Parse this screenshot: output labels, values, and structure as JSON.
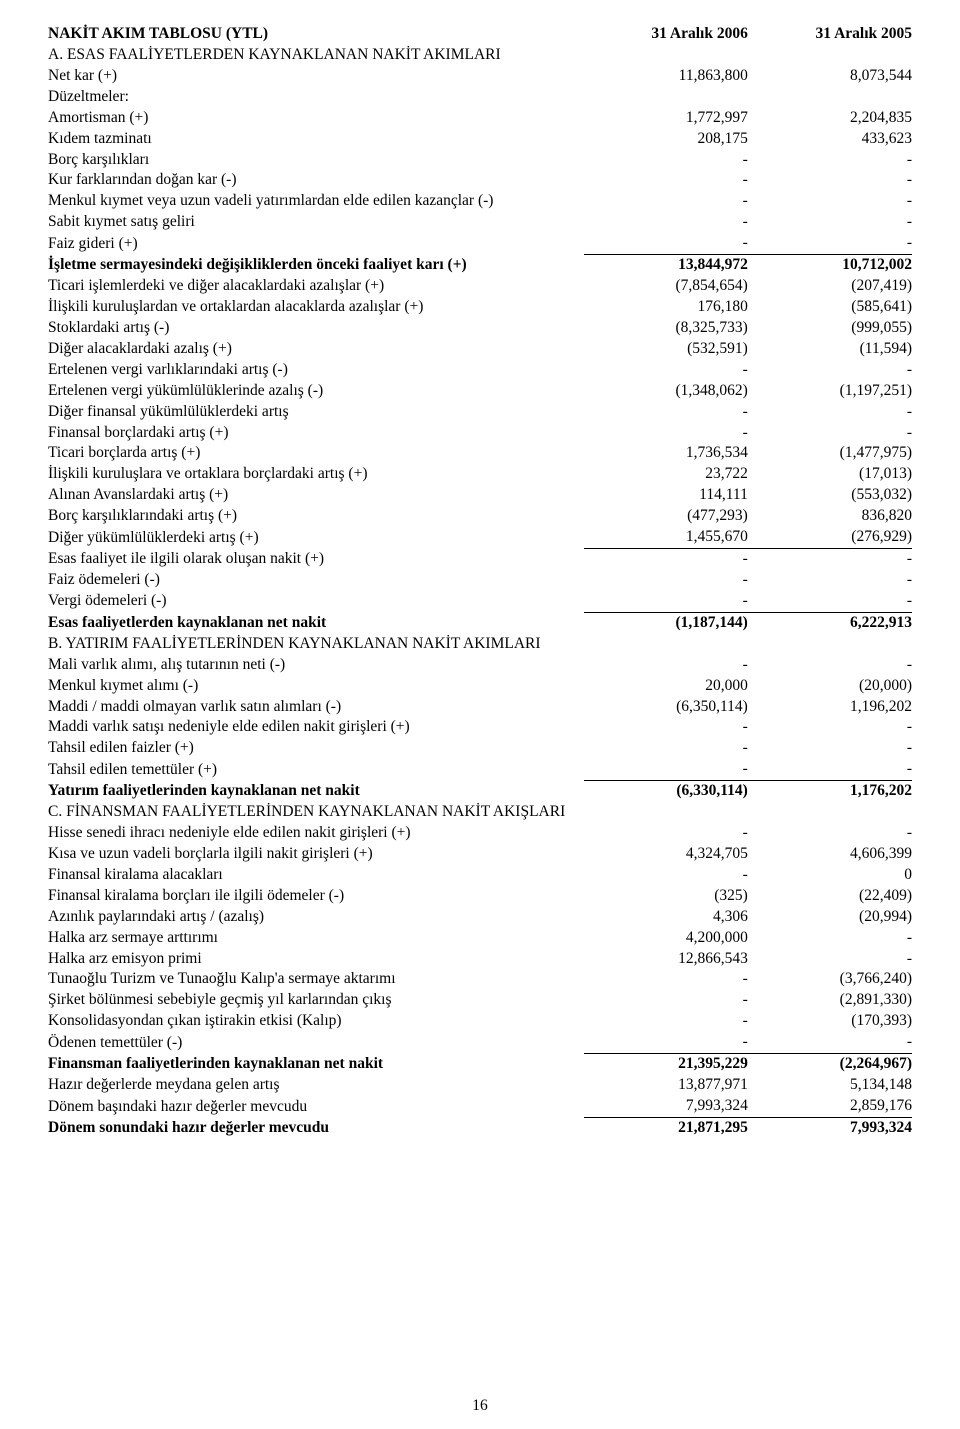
{
  "header": {
    "title": "NAKİT AKIM TABLOSU (YTL)",
    "col1": "31 Aralık 2006",
    "col2": "31 Aralık 2005"
  },
  "rows": [
    {
      "label": "A. ESAS FAALİYETLERDEN KAYNAKLANAN NAKİT AKIMLARI",
      "v1": "",
      "v2": "",
      "section": true
    },
    {
      "label": "Net kar (+)",
      "v1": "11,863,800",
      "v2": "8,073,544"
    },
    {
      "label": "Düzeltmeler:",
      "v1": "",
      "v2": ""
    },
    {
      "label": "Amortisman (+)",
      "v1": "1,772,997",
      "v2": "2,204,835"
    },
    {
      "label": "Kıdem tazminatı",
      "v1": "208,175",
      "v2": "433,623"
    },
    {
      "label": "Borç karşılıkları",
      "v1": "-",
      "v2": "-"
    },
    {
      "label": "Kur farklarından doğan kar (-)",
      "v1": "-",
      "v2": "-"
    },
    {
      "label": "Menkul kıymet veya uzun vadeli yatırımlardan elde edilen kazançlar (-)",
      "v1": "-",
      "v2": "-"
    },
    {
      "label": "Sabit kıymet satış geliri",
      "v1": "-",
      "v2": "-"
    },
    {
      "label": "Faiz gideri (+)",
      "v1": "-",
      "v2": "-"
    },
    {
      "label": "İşletme sermayesindeki değişikliklerden önceki faaliyet karı (+)",
      "v1": "13,844,972",
      "v2": "10,712,002",
      "bold": true,
      "rule_top": true
    },
    {
      "label": "Ticari işlemlerdeki ve diğer alacaklardaki azalışlar (+)",
      "v1": "(7,854,654)",
      "v2": "(207,419)"
    },
    {
      "label": "İlişkili kuruluşlardan ve ortaklardan alacaklarda azalışlar (+)",
      "v1": "176,180",
      "v2": "(585,641)"
    },
    {
      "label": "Stoklardaki artış (-)",
      "v1": "(8,325,733)",
      "v2": "(999,055)"
    },
    {
      "label": "Diğer alacaklardaki azalış (+)",
      "v1": "(532,591)",
      "v2": "(11,594)"
    },
    {
      "label": "Ertelenen vergi varlıklarındaki artış (-)",
      "v1": "-",
      "v2": "-"
    },
    {
      "label": "Ertelenen vergi yükümlülüklerinde azalış (-)",
      "v1": "(1,348,062)",
      "v2": "(1,197,251)"
    },
    {
      "label": "Diğer finansal yükümlülüklerdeki artış",
      "v1": "-",
      "v2": "-"
    },
    {
      "label": "Finansal borçlardaki artış (+)",
      "v1": "-",
      "v2": "-"
    },
    {
      "label": "Ticari borçlarda artış (+)",
      "v1": "1,736,534",
      "v2": "(1,477,975)"
    },
    {
      "label": "İlişkili kuruluşlara ve ortaklara borçlardaki artış (+)",
      "v1": "23,722",
      "v2": "(17,013)"
    },
    {
      "label": "Alınan Avanslardaki artış (+)",
      "v1": "114,111",
      "v2": "(553,032)"
    },
    {
      "label": "Borç karşılıklarındaki artış (+)",
      "v1": "(477,293)",
      "v2": "836,820"
    },
    {
      "label": "Diğer yükümlülüklerdeki artış (+)",
      "v1": "1,455,670",
      "v2": "(276,929)"
    },
    {
      "label": "Esas faaliyet ile ilgili olarak oluşan nakit (+)",
      "v1": "-",
      "v2": "-",
      "rule_top": true
    },
    {
      "label": "Faiz ödemeleri (-)",
      "v1": "-",
      "v2": "-"
    },
    {
      "label": "Vergi ödemeleri (-)",
      "v1": "-",
      "v2": "-"
    },
    {
      "label": "Esas faaliyetlerden kaynaklanan net nakit",
      "v1": "(1,187,144)",
      "v2": "6,222,913",
      "bold": true,
      "rule_top": true
    },
    {
      "label": "B. YATIRIM FAALİYETLERİNDEN KAYNAKLANAN NAKİT AKIMLARI",
      "v1": "",
      "v2": "",
      "section": true
    },
    {
      "label": "Mali varlık alımı, alış tutarının neti (-)",
      "v1": "-",
      "v2": "-"
    },
    {
      "label": "Menkul kıymet alımı (-)",
      "v1": "20,000",
      "v2": "(20,000)"
    },
    {
      "label": "Maddi / maddi olmayan varlık satın alımları (-)",
      "v1": "(6,350,114)",
      "v2": "1,196,202"
    },
    {
      "label": "Maddi varlık satışı nedeniyle elde edilen nakit girişleri (+)",
      "v1": "-",
      "v2": "-"
    },
    {
      "label": "Tahsil edilen faizler (+)",
      "v1": "-",
      "v2": "-"
    },
    {
      "label": "Tahsil edilen temettüler (+)",
      "v1": "-",
      "v2": "-"
    },
    {
      "label": "Yatırım faaliyetlerinden kaynaklanan net nakit",
      "v1": "(6,330,114)",
      "v2": "1,176,202",
      "bold": true,
      "rule_top": true
    },
    {
      "label": "C. FİNANSMAN FAALİYETLERİNDEN KAYNAKLANAN NAKİT AKIŞLARI",
      "v1": "",
      "v2": "",
      "section": true
    },
    {
      "label": "Hisse senedi ihracı nedeniyle elde edilen nakit girişleri (+)",
      "v1": "-",
      "v2": "-"
    },
    {
      "label": "Kısa ve uzun vadeli borçlarla ilgili nakit girişleri (+)",
      "v1": "4,324,705",
      "v2": "4,606,399"
    },
    {
      "label": "Finansal kiralama alacakları",
      "v1": "-",
      "v2": "0"
    },
    {
      "label": "Finansal kiralama borçları ile ilgili ödemeler (-)",
      "v1": "(325)",
      "v2": "(22,409)"
    },
    {
      "label": "Azınlık paylarındaki artış / (azalış)",
      "v1": "4,306",
      "v2": "(20,994)"
    },
    {
      "label": "Halka arz sermaye arttırımı",
      "v1": "4,200,000",
      "v2": "-"
    },
    {
      "label": "Halka arz emisyon primi",
      "v1": "12,866,543",
      "v2": "-"
    },
    {
      "label": "Tunaoğlu Turizm ve Tunaoğlu Kalıp'a sermaye aktarımı",
      "v1": "-",
      "v2": "(3,766,240)"
    },
    {
      "label": "Şirket bölünmesi sebebiyle geçmiş yıl karlarından çıkış",
      "v1": "-",
      "v2": "(2,891,330)"
    },
    {
      "label": "Konsolidasyondan çıkan iştirakin etkisi (Kalıp)",
      "v1": "-",
      "v2": "(170,393)"
    },
    {
      "label": "Ödenen temettüler (-)",
      "v1": "-",
      "v2": "-"
    },
    {
      "label": "Finansman faaliyetlerinden kaynaklanan net nakit",
      "v1": "21,395,229",
      "v2": "(2,264,967)",
      "bold": true,
      "rule_top": true
    },
    {
      "label": "Hazır değerlerde meydana gelen artış",
      "v1": "13,877,971",
      "v2": "5,134,148"
    },
    {
      "label": "Dönem başındaki hazır değerler mevcudu",
      "v1": "7,993,324",
      "v2": "2,859,176"
    },
    {
      "label": "Dönem sonundaki hazır değerler mevcudu",
      "v1": "21,871,295",
      "v2": "7,993,324",
      "bold": true,
      "rule_top": true
    }
  ],
  "page_number": "16"
}
